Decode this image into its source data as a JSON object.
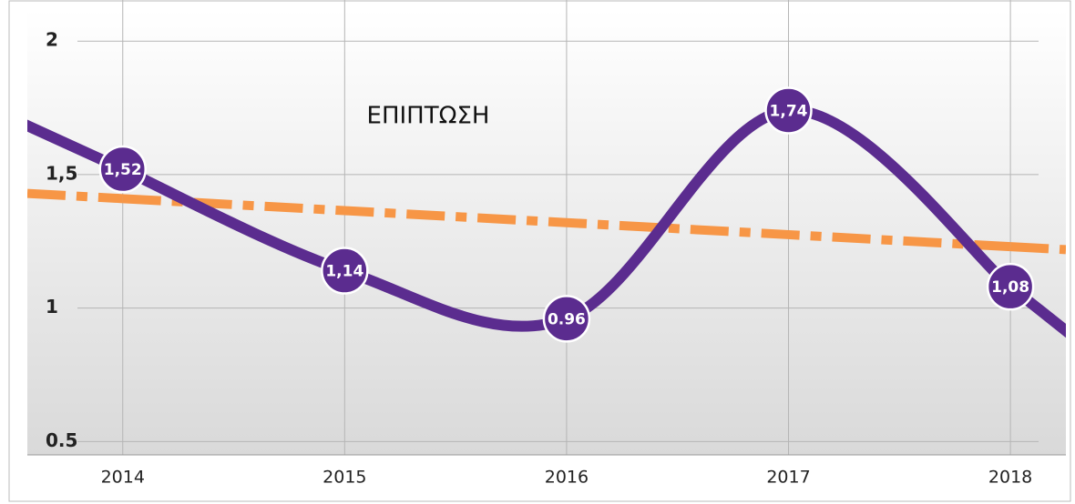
{
  "chart_data": {
    "type": "line",
    "title": "ΕΠΙΠΤΩΣΗ",
    "x": [
      2014,
      2015,
      2016,
      2017,
      2018
    ],
    "series": [
      {
        "color": "#5b2c8f",
        "values": [
          1.52,
          1.14,
          0.96,
          1.74,
          1.08
        ],
        "value_labels": [
          "1,52",
          "1,14",
          "0.96",
          "1,74",
          "1,08"
        ]
      }
    ],
    "trendline": {
      "color": "#f79646",
      "values": [
        1.41,
        1.365,
        1.32,
        1.275,
        1.23
      ]
    },
    "xlim": [
      2013.57,
      2018.25
    ],
    "xticks": [
      2014,
      2015,
      2016,
      2017,
      2018
    ],
    "ylim": [
      0.45,
      2.12
    ],
    "yticks": [
      {
        "value": 0.5,
        "label": "0.5"
      },
      1,
      {
        "value": 1.5,
        "label": "1,5"
      },
      2
    ],
    "grid": true
  }
}
